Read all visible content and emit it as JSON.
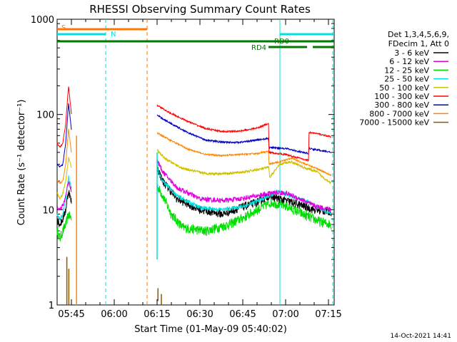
{
  "chart_data": {
    "type": "line",
    "title": "RHESSI Observing Summary Count Rates",
    "xlabel": "Start Time (01-May-09 05:40:02)",
    "ylabel": "Count Rate (s⁻¹ detector⁻¹)",
    "yscale": "log",
    "ylim": [
      1,
      1000
    ],
    "xlim": [
      "05:40:02",
      "07:17:00"
    ],
    "x_unit": "minutes after 05:40:02",
    "x_range_minutes": [
      0,
      97
    ],
    "y_ticks": [
      "1",
      "10",
      "100",
      "1000"
    ],
    "x_ticks": [
      {
        "label": "05:45",
        "minute": 5
      },
      {
        "label": "06:00",
        "minute": 20
      },
      {
        "label": "06:15",
        "minute": 35
      },
      {
        "label": "06:30",
        "minute": 50
      },
      {
        "label": "06:45",
        "minute": 65
      },
      {
        "label": "07:00",
        "minute": 80
      },
      {
        "label": "07:15",
        "minute": 95
      }
    ],
    "legend_header": [
      "Det 1,3,4,5,6,9,",
      "FDecim 1, Att 0"
    ],
    "legend_position": "right",
    "timestamp": "14-Oct-2021 14:41",
    "series": [
      {
        "name": "3 - 6 keV",
        "color": "#000000",
        "noise": 0.1,
        "pre": [
          [
            0,
            8
          ],
          [
            1,
            7
          ],
          [
            2,
            8
          ],
          [
            3,
            10
          ],
          [
            4,
            16
          ],
          [
            5,
            12
          ]
        ],
        "post": [
          [
            35,
            28
          ],
          [
            37,
            20
          ],
          [
            42,
            13
          ],
          [
            50,
            10
          ],
          [
            58,
            9
          ],
          [
            64,
            10.5
          ],
          [
            70,
            12
          ],
          [
            74,
            14
          ],
          [
            78,
            13
          ],
          [
            82,
            12
          ],
          [
            86,
            11
          ],
          [
            90,
            10
          ],
          [
            96,
            9.5
          ]
        ]
      },
      {
        "name": "6 - 12 keV",
        "color": "#e000e0",
        "noise": 0.06,
        "pre": [
          [
            0,
            11
          ],
          [
            1,
            10
          ],
          [
            2,
            11
          ],
          [
            3,
            14
          ],
          [
            4,
            20
          ],
          [
            5,
            16
          ]
        ],
        "post": [
          [
            35,
            33
          ],
          [
            37,
            25
          ],
          [
            42,
            17
          ],
          [
            50,
            13
          ],
          [
            58,
            12.5
          ],
          [
            64,
            13
          ],
          [
            70,
            14
          ],
          [
            75,
            15
          ],
          [
            80,
            15
          ],
          [
            85,
            13
          ],
          [
            90,
            11
          ],
          [
            96,
            10
          ]
        ]
      },
      {
        "name": "12 - 25 keV",
        "color": "#00dd00",
        "noise": 0.12,
        "pre": [
          [
            0,
            6
          ],
          [
            1,
            5
          ],
          [
            2,
            6
          ],
          [
            3,
            7
          ],
          [
            4,
            9
          ],
          [
            5,
            8
          ]
        ],
        "post": [
          [
            35,
            18
          ],
          [
            37,
            14
          ],
          [
            40,
            9
          ],
          [
            44,
            6.5
          ],
          [
            52,
            6
          ],
          [
            60,
            7
          ],
          [
            66,
            8.5
          ],
          [
            70,
            10
          ],
          [
            75,
            12
          ],
          [
            80,
            11
          ],
          [
            86,
            9
          ],
          [
            92,
            7.5
          ],
          [
            96,
            7
          ]
        ]
      },
      {
        "name": "25 - 50 keV",
        "color": "#00e0e0",
        "noise": 0.05,
        "pre": [
          [
            0,
            9
          ],
          [
            1,
            8
          ],
          [
            2,
            9
          ],
          [
            3,
            13
          ],
          [
            4,
            22
          ],
          [
            5,
            17
          ]
        ],
        "post": [
          [
            35,
            27
          ],
          [
            37,
            20
          ],
          [
            42,
            14
          ],
          [
            50,
            10.5
          ],
          [
            58,
            10
          ],
          [
            66,
            11
          ],
          [
            72,
            13
          ],
          [
            77,
            15.5
          ],
          [
            82,
            14
          ],
          [
            88,
            12
          ],
          [
            96,
            9
          ]
        ]
      },
      {
        "name": "50 - 100 keV",
        "color": "#d0c000",
        "noise": 0.03,
        "pre": [
          [
            0,
            15
          ],
          [
            1,
            13
          ],
          [
            2,
            15
          ],
          [
            3,
            20
          ],
          [
            4,
            35
          ],
          [
            5,
            28
          ]
        ],
        "post": [
          [
            35,
            42
          ],
          [
            38,
            34
          ],
          [
            44,
            27
          ],
          [
            52,
            24
          ],
          [
            60,
            24
          ],
          [
            66,
            25
          ],
          [
            72,
            27
          ],
          [
            74,
            28
          ],
          [
            74.5,
            22
          ],
          [
            78,
            30
          ],
          [
            82,
            32
          ],
          [
            86,
            28
          ],
          [
            91,
            25
          ],
          [
            93,
            22
          ],
          [
            96,
            19
          ]
        ]
      },
      {
        "name": "100 - 300 keV",
        "color": "#ff0000",
        "noise": 0.02,
        "pre": [
          [
            0,
            50
          ],
          [
            1,
            45
          ],
          [
            2,
            50
          ],
          [
            3,
            80
          ],
          [
            4,
            200
          ],
          [
            5,
            100
          ]
        ],
        "post": [
          [
            35,
            125
          ],
          [
            40,
            102
          ],
          [
            46,
            84
          ],
          [
            52,
            71
          ],
          [
            58,
            66
          ],
          [
            64,
            67
          ],
          [
            70,
            72
          ],
          [
            74,
            80
          ],
          [
            74.2,
            40
          ],
          [
            80,
            38
          ],
          [
            86,
            34
          ],
          [
            88,
            33
          ],
          [
            88.2,
            65
          ],
          [
            92,
            62
          ],
          [
            96,
            58
          ]
        ]
      },
      {
        "name": "300 - 800 keV",
        "color": "#0000c0",
        "noise": 0.02,
        "pre": [
          [
            0,
            30
          ],
          [
            1,
            28
          ],
          [
            2,
            30
          ],
          [
            3,
            50
          ],
          [
            4,
            130
          ],
          [
            5,
            70
          ]
        ],
        "post": [
          [
            35,
            98
          ],
          [
            40,
            80
          ],
          [
            46,
            64
          ],
          [
            52,
            54
          ],
          [
            58,
            51
          ],
          [
            64,
            51
          ],
          [
            70,
            54
          ],
          [
            74,
            56
          ],
          [
            74.2,
            45
          ],
          [
            80,
            44
          ],
          [
            86,
            40
          ],
          [
            88,
            39
          ],
          [
            88.2,
            44
          ],
          [
            92,
            42
          ],
          [
            96,
            40
          ]
        ]
      },
      {
        "name": "800 - 7000 keV",
        "color": "#ff8800",
        "noise": 0.02,
        "pre": [
          [
            0,
            20
          ],
          [
            1,
            19
          ],
          [
            2,
            20
          ],
          [
            3,
            30
          ],
          [
            4,
            70
          ],
          [
            5,
            40
          ]
        ],
        "post": [
          [
            35,
            64
          ],
          [
            40,
            53
          ],
          [
            46,
            43
          ],
          [
            52,
            38
          ],
          [
            58,
            37
          ],
          [
            64,
            38
          ],
          [
            70,
            39
          ],
          [
            74,
            41
          ],
          [
            74.2,
            30
          ],
          [
            78,
            32
          ],
          [
            82,
            35
          ],
          [
            86,
            31
          ],
          [
            91,
            27
          ],
          [
            96,
            23
          ]
        ]
      },
      {
        "name": "7000 - 15000 keV",
        "color": "#8b5a00",
        "noise": 0,
        "pre": [],
        "post": []
      }
    ],
    "flags": [
      {
        "label": "S",
        "color": "#ff7700",
        "segments": [
          [
            0,
            31.5
          ]
        ]
      },
      {
        "label": "N",
        "color": "#00e0e0",
        "segments": [
          [
            0,
            17
          ],
          [
            78,
            97
          ]
        ]
      },
      {
        "label": "RD0",
        "color": "#007700",
        "segments": [
          [
            0,
            97
          ]
        ]
      },
      {
        "label": "RD4",
        "color": "#007700",
        "segments": [
          [
            74,
            87.5
          ],
          [
            89.5,
            97
          ]
        ]
      }
    ],
    "vlines": [
      {
        "minute": 17,
        "color": "#00e0e0",
        "style": "dashed"
      },
      {
        "minute": 31.5,
        "color": "#ff7700",
        "style": "dashed"
      },
      {
        "minute": 78,
        "color": "#00e0e0",
        "style": "solid"
      },
      {
        "minute": 96.5,
        "color": "#00e0e0",
        "style": "dashed"
      }
    ]
  }
}
